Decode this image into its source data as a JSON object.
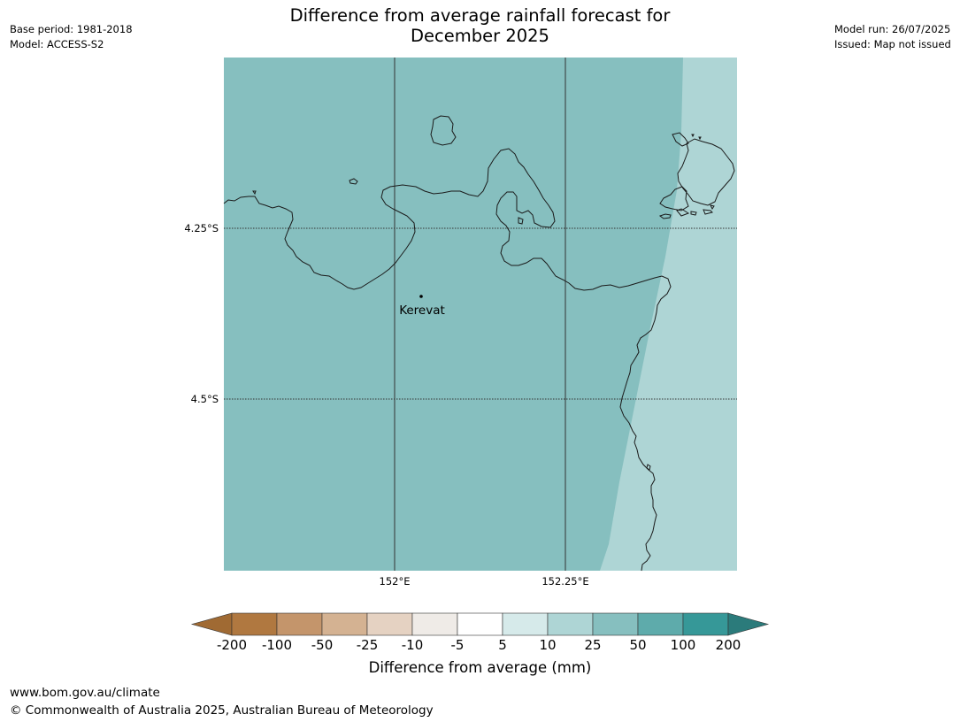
{
  "title_line1": "Difference from average rainfall forecast for",
  "title_line2": "December 2025",
  "meta_left": {
    "base_period": "Base period: 1981-2018",
    "model": "Model: ACCESS-S2"
  },
  "meta_right": {
    "model_run": "Model run: 26/07/2025",
    "issued": "Issued: Map not issued"
  },
  "map": {
    "lat_labels": [
      "4.25°S",
      "4.5°S"
    ],
    "lon_labels": [
      "152°E",
      "152.25°E"
    ],
    "place": {
      "name": "Kerevat"
    },
    "fill_colors": {
      "main": "#86bfbf",
      "east": "#aed5d5",
      "coast": "#1a1a1a",
      "grid": "#333333"
    }
  },
  "colorbar": {
    "ticks": [
      "-200",
      "-100",
      "-50",
      "-25",
      "-10",
      "-5",
      "5",
      "10",
      "25",
      "50",
      "100",
      "200"
    ],
    "colors": [
      "#a06a33",
      "#b07840",
      "#c4956b",
      "#d4b292",
      "#e5d2c2",
      "#efebe7",
      "#ffffff",
      "#d6eaea",
      "#aed5d5",
      "#86bfbf",
      "#5eabab",
      "#369898",
      "#2b7b7b"
    ],
    "label": "Difference from average (mm)"
  },
  "footer": {
    "url": "www.bom.gov.au/climate",
    "copyright": "© Commonwealth of Australia 2025, Australian Bureau of Meteorology"
  }
}
